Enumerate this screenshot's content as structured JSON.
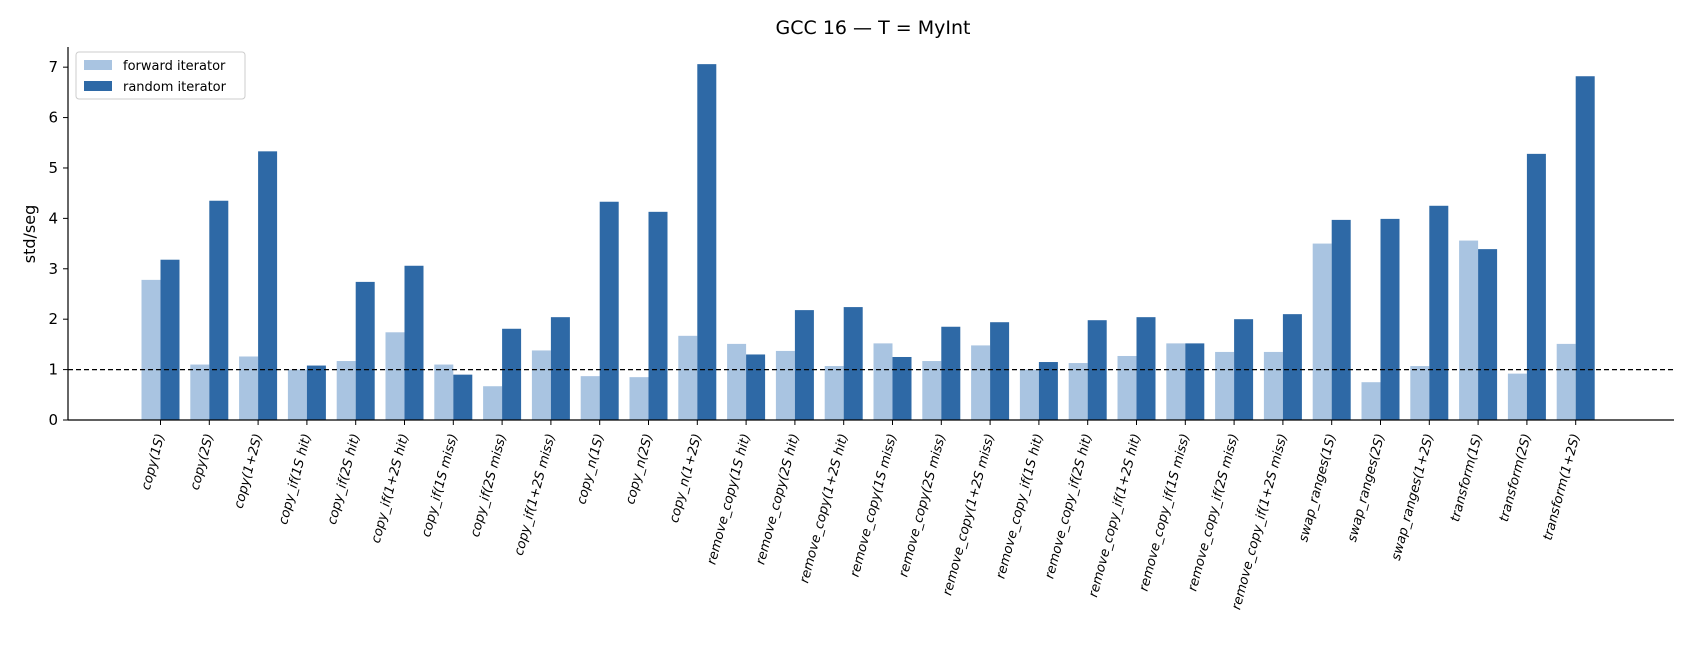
{
  "chart_data": {
    "type": "bar",
    "title": "GCC 16 — T = MyInt",
    "xlabel": "",
    "ylabel": "std/seg",
    "ylim": [
      0,
      7.4
    ],
    "yticks": [
      "0",
      "1",
      "2",
      "3",
      "4",
      "5",
      "6",
      "7"
    ],
    "reference_line": {
      "y": 1,
      "style": "dashed"
    },
    "grid": false,
    "legend_position": "top-left",
    "categories": [
      "copy(1S)",
      "copy(2S)",
      "copy(1+2S)",
      "copy_if(1S hit)",
      "copy_if(2S hit)",
      "copy_if(1+2S hit)",
      "copy_if(1S miss)",
      "copy_if(2S miss)",
      "copy_if(1+2S miss)",
      "copy_n(1S)",
      "copy_n(2S)",
      "copy_n(1+2S)",
      "remove_copy(1S hit)",
      "remove_copy(2S hit)",
      "remove_copy(1+2S hit)",
      "remove_copy(1S miss)",
      "remove_copy(2S miss)",
      "remove_copy(1+2S miss)",
      "remove_copy_if(1S hit)",
      "remove_copy_if(2S hit)",
      "remove_copy_if(1+2S hit)",
      "remove_copy_if(1S miss)",
      "remove_copy_if(2S miss)",
      "remove_copy_if(1+2S miss)",
      "swap_ranges(1S)",
      "swap_ranges(2S)",
      "swap_ranges(1+2S)",
      "transform(1S)",
      "transform(2S)",
      "transform(1+2S)"
    ],
    "series": [
      {
        "name": "forward iterator",
        "color": "#a9c4e1",
        "values": [
          2.78,
          1.1,
          1.26,
          1.0,
          1.17,
          1.74,
          1.1,
          0.67,
          1.38,
          0.87,
          0.85,
          1.67,
          1.51,
          1.37,
          1.07,
          1.52,
          1.17,
          1.48,
          1.0,
          1.13,
          1.27,
          1.52,
          1.35,
          1.35,
          3.5,
          0.75,
          1.07,
          3.56,
          0.92,
          1.51
        ]
      },
      {
        "name": "random iterator",
        "color": "#2e69a6",
        "values": [
          3.18,
          4.35,
          5.33,
          1.08,
          2.74,
          3.06,
          0.9,
          1.81,
          2.04,
          4.33,
          4.13,
          7.06,
          1.3,
          2.18,
          2.24,
          1.25,
          1.85,
          1.94,
          1.15,
          1.98,
          2.04,
          1.52,
          2.0,
          2.1,
          3.97,
          3.99,
          4.25,
          3.39,
          5.28,
          6.82
        ]
      }
    ]
  }
}
